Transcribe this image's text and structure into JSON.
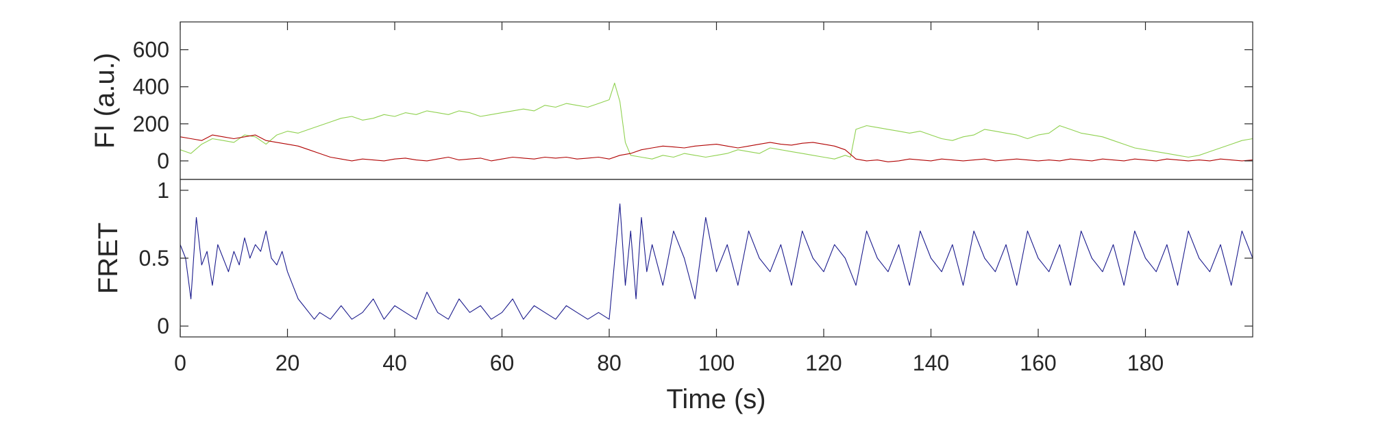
{
  "chart_data": [
    {
      "type": "line",
      "panel": "top",
      "ylabel": "FI (a.u.)",
      "xlim": [
        0,
        200
      ],
      "ylim": [
        -100,
        750
      ],
      "yticks": [
        0,
        200,
        400,
        600
      ],
      "ytick_labels": [
        "0",
        "200",
        "400",
        "600"
      ],
      "grid": false,
      "series": [
        {
          "color": "#8fd14f",
          "x": [
            0,
            2,
            4,
            6,
            8,
            10,
            12,
            14,
            16,
            18,
            20,
            22,
            24,
            26,
            28,
            30,
            32,
            34,
            36,
            38,
            40,
            42,
            44,
            46,
            48,
            50,
            52,
            54,
            56,
            58,
            60,
            62,
            64,
            66,
            68,
            70,
            72,
            74,
            76,
            78,
            80,
            81,
            82,
            83,
            84,
            86,
            88,
            90,
            92,
            94,
            96,
            98,
            100,
            102,
            104,
            106,
            108,
            110,
            112,
            114,
            116,
            118,
            120,
            122,
            124,
            125,
            126,
            128,
            130,
            132,
            134,
            136,
            138,
            140,
            142,
            144,
            146,
            148,
            150,
            152,
            154,
            156,
            158,
            160,
            162,
            164,
            166,
            168,
            170,
            172,
            174,
            176,
            178,
            180,
            182,
            184,
            186,
            188,
            190,
            192,
            194,
            196,
            198,
            200
          ],
          "values": [
            60,
            40,
            90,
            120,
            110,
            100,
            140,
            130,
            90,
            140,
            160,
            150,
            170,
            190,
            210,
            230,
            240,
            220,
            230,
            250,
            240,
            260,
            250,
            270,
            260,
            250,
            270,
            260,
            240,
            250,
            260,
            270,
            280,
            270,
            300,
            290,
            310,
            300,
            290,
            310,
            330,
            420,
            320,
            100,
            30,
            20,
            10,
            30,
            20,
            40,
            30,
            20,
            30,
            40,
            60,
            50,
            40,
            70,
            60,
            50,
            40,
            30,
            20,
            10,
            30,
            20,
            170,
            190,
            180,
            170,
            160,
            150,
            160,
            140,
            120,
            110,
            130,
            140,
            170,
            160,
            150,
            140,
            120,
            140,
            150,
            190,
            170,
            150,
            140,
            130,
            110,
            90,
            70,
            60,
            50,
            40,
            30,
            20,
            30,
            50,
            70,
            90,
            110,
            120
          ]
        },
        {
          "color": "#b00000",
          "x": [
            0,
            2,
            4,
            6,
            8,
            10,
            12,
            14,
            16,
            18,
            20,
            22,
            24,
            26,
            28,
            30,
            32,
            34,
            36,
            38,
            40,
            42,
            44,
            46,
            48,
            50,
            52,
            54,
            56,
            58,
            60,
            62,
            64,
            66,
            68,
            70,
            72,
            74,
            76,
            78,
            80,
            82,
            84,
            86,
            88,
            90,
            92,
            94,
            96,
            98,
            100,
            102,
            104,
            106,
            108,
            110,
            112,
            114,
            116,
            118,
            120,
            122,
            124,
            126,
            128,
            130,
            132,
            134,
            136,
            138,
            140,
            142,
            144,
            146,
            148,
            150,
            152,
            154,
            156,
            158,
            160,
            162,
            164,
            166,
            168,
            170,
            172,
            174,
            176,
            178,
            180,
            182,
            184,
            186,
            188,
            190,
            192,
            194,
            196,
            198,
            200
          ],
          "values": [
            130,
            120,
            110,
            140,
            130,
            120,
            130,
            140,
            110,
            100,
            90,
            80,
            60,
            40,
            20,
            10,
            0,
            10,
            5,
            0,
            10,
            15,
            5,
            0,
            10,
            20,
            5,
            10,
            15,
            0,
            10,
            20,
            15,
            10,
            20,
            15,
            20,
            10,
            15,
            20,
            10,
            30,
            40,
            60,
            70,
            80,
            75,
            70,
            80,
            85,
            90,
            80,
            70,
            80,
            90,
            100,
            90,
            85,
            95,
            100,
            90,
            80,
            60,
            10,
            0,
            5,
            -5,
            0,
            10,
            5,
            0,
            10,
            5,
            0,
            5,
            10,
            0,
            5,
            10,
            5,
            0,
            5,
            0,
            10,
            5,
            0,
            10,
            5,
            0,
            10,
            5,
            0,
            10,
            5,
            0,
            5,
            0,
            10,
            5,
            0,
            5
          ]
        }
      ]
    },
    {
      "type": "line",
      "panel": "bottom",
      "ylabel": "FRET",
      "xlabel": "Time (s)",
      "xlim": [
        0,
        200
      ],
      "ylim": [
        -0.08,
        1.08
      ],
      "xticks": [
        0,
        20,
        40,
        60,
        80,
        100,
        120,
        140,
        160,
        180
      ],
      "xtick_labels": [
        "0",
        "20",
        "40",
        "60",
        "80",
        "100",
        "120",
        "140",
        "160",
        "180"
      ],
      "yticks": [
        0,
        0.5,
        1
      ],
      "ytick_labels": [
        "0",
        "0.5",
        "1"
      ],
      "grid": false,
      "series": [
        {
          "color": "#1a1a8c",
          "x": [
            0,
            1,
            2,
            3,
            4,
            5,
            6,
            7,
            8,
            9,
            10,
            11,
            12,
            13,
            14,
            15,
            16,
            17,
            18,
            19,
            20,
            21,
            22,
            23,
            24,
            25,
            26,
            28,
            30,
            32,
            34,
            36,
            38,
            40,
            42,
            44,
            46,
            48,
            50,
            52,
            54,
            56,
            58,
            60,
            62,
            64,
            66,
            68,
            70,
            72,
            74,
            76,
            78,
            80,
            82,
            83,
            84,
            85,
            86,
            87,
            88,
            90,
            92,
            94,
            96,
            98,
            100,
            102,
            104,
            106,
            108,
            110,
            112,
            114,
            116,
            118,
            120,
            122,
            124,
            126,
            128,
            130,
            132,
            134,
            136,
            138,
            140,
            142,
            144,
            146,
            148,
            150,
            152,
            154,
            156,
            158,
            160,
            162,
            164,
            166,
            168,
            170,
            172,
            174,
            176,
            178,
            180,
            182,
            184,
            186,
            188,
            190,
            192,
            194,
            196,
            198,
            200
          ],
          "values": [
            0.6,
            0.5,
            0.2,
            0.8,
            0.45,
            0.55,
            0.3,
            0.6,
            0.5,
            0.4,
            0.55,
            0.45,
            0.65,
            0.5,
            0.6,
            0.55,
            0.7,
            0.5,
            0.45,
            0.55,
            0.4,
            0.3,
            0.2,
            0.15,
            0.1,
            0.05,
            0.1,
            0.05,
            0.15,
            0.05,
            0.1,
            0.2,
            0.05,
            0.15,
            0.1,
            0.05,
            0.25,
            0.1,
            0.05,
            0.2,
            0.1,
            0.15,
            0.05,
            0.1,
            0.2,
            0.05,
            0.15,
            0.1,
            0.05,
            0.15,
            0.1,
            0.05,
            0.1,
            0.05,
            0.9,
            0.3,
            0.7,
            0.2,
            0.8,
            0.4,
            0.6,
            0.3,
            0.7,
            0.5,
            0.2,
            0.8,
            0.4,
            0.6,
            0.3,
            0.7,
            0.5,
            0.4,
            0.6,
            0.3,
            0.7,
            0.5,
            0.4,
            0.6,
            0.5,
            0.3,
            0.7,
            0.5,
            0.4,
            0.6,
            0.3,
            0.7,
            0.5,
            0.4,
            0.6,
            0.3,
            0.7,
            0.5,
            0.4,
            0.6,
            0.3,
            0.7,
            0.5,
            0.4,
            0.6,
            0.3,
            0.7,
            0.5,
            0.4,
            0.6,
            0.3,
            0.7,
            0.5,
            0.4,
            0.6,
            0.3,
            0.7,
            0.5,
            0.4,
            0.6,
            0.3,
            0.7,
            0.5
          ]
        }
      ]
    }
  ]
}
